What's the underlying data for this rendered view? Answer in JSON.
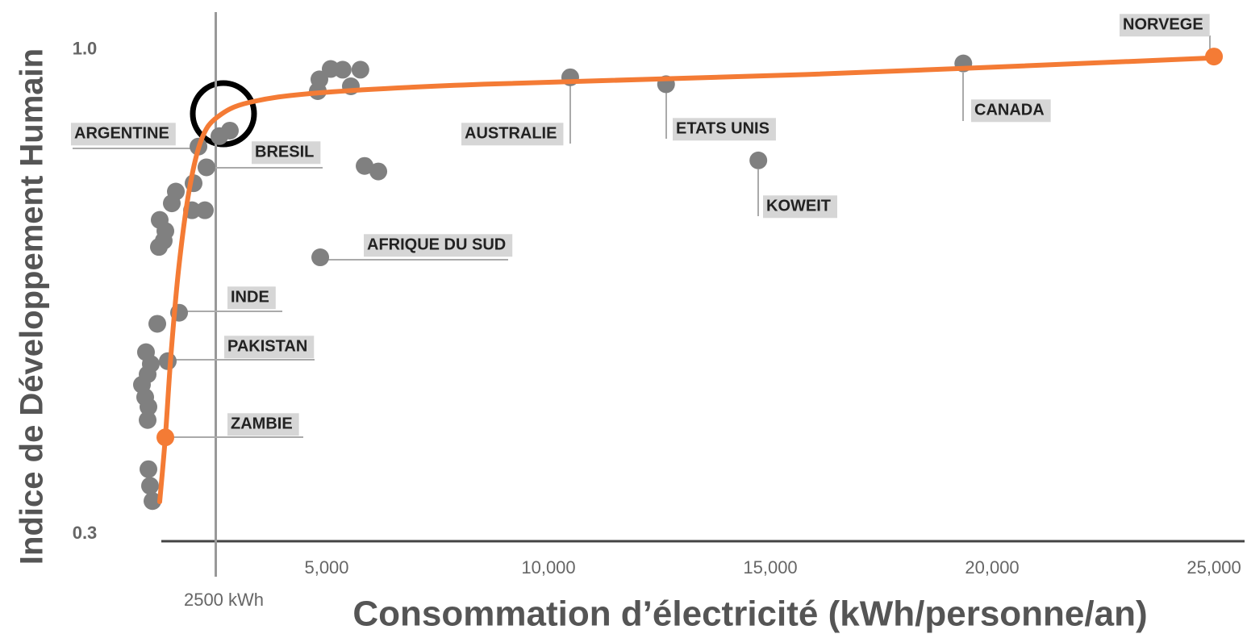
{
  "chart_data": {
    "type": "scatter",
    "xlabel": "Consommation d’électricité (kWh/personne/an)",
    "ylabel": "Indice de Développement Humain",
    "xlim": [
      0,
      25690
    ],
    "ylim": [
      0.29,
      1.06
    ],
    "xticks": [
      {
        "value": 5000,
        "label": "5,000"
      },
      {
        "value": 10000,
        "label": "10,000"
      },
      {
        "value": 15000,
        "label": "15,000"
      },
      {
        "value": 20000,
        "label": "20,000"
      },
      {
        "value": 25000,
        "label": "25,000"
      }
    ],
    "yticks": [
      0.3,
      {
        "value": 1,
        "label": "1.0"
      }
    ],
    "reference_line": {
      "value": 2500,
      "label": "2500 kWh"
    },
    "points": {
      "x": [
        25000,
        19350,
        12650,
        10490,
        14730,
        4855,
        2290,
        2110,
        1673,
        1418,
        1364,
        5090,
        5360,
        5760,
        4836,
        4800,
        5545,
        5855,
        6164,
        2818,
        2582,
        2000,
        1600,
        1509,
        1964,
        2255,
        1236,
        1364,
        1327,
        1218,
        1182,
        927,
        1036,
        964,
        836,
        909,
        982,
        964,
        982,
        1018,
        1073
      ],
      "y": [
        0.99,
        0.98,
        0.95,
        0.96,
        0.84,
        0.7,
        0.83,
        0.86,
        0.62,
        0.55,
        0.44,
        0.972,
        0.971,
        0.971,
        0.957,
        0.94,
        0.947,
        0.832,
        0.824,
        0.883,
        0.875,
        0.807,
        0.795,
        0.778,
        0.768,
        0.768,
        0.754,
        0.738,
        0.724,
        0.715,
        0.604,
        0.563,
        0.546,
        0.531,
        0.516,
        0.498,
        0.484,
        0.465,
        0.394,
        0.37,
        0.348
      ],
      "labels": [
        "NORVEGE",
        "CANADA",
        "ETATS UNIS",
        "AUSTRALIE",
        "KOWEIT",
        "AFRIQUE DU SUD",
        "BRESIL",
        "ARGENTINE",
        "INDE",
        "PAKISTAN",
        "ZAMBIE",
        null,
        null,
        null,
        null,
        null,
        null,
        null,
        null,
        null,
        null,
        null,
        null,
        null,
        null,
        null,
        null,
        null,
        null,
        null,
        null,
        null,
        null,
        null,
        null,
        null,
        null,
        null,
        null,
        null,
        null
      ],
      "colors": [
        "#f47b35",
        "#808080",
        "#808080",
        "#808080",
        "#808080",
        "#808080",
        "#808080",
        "#808080",
        "#808080",
        "#808080",
        "#f47b35",
        "#808080",
        "#808080",
        "#808080",
        "#808080",
        "#808080",
        "#808080",
        "#808080",
        "#808080",
        "#808080",
        "#808080",
        "#808080",
        "#808080",
        "#808080",
        "#808080",
        "#808080",
        "#808080",
        "#808080",
        "#808080",
        "#808080",
        "#808080",
        "#808080",
        "#808080",
        "#808080",
        "#808080",
        "#808080",
        "#808080",
        "#808080",
        "#808080",
        "#808080",
        "#808080"
      ]
    },
    "curve": {
      "color": "#f47b35",
      "x": [
        1236,
        1364,
        1491,
        1673,
        1909,
        2182,
        2545,
        3273,
        4909,
        8545,
        15818,
        25000
      ],
      "y": [
        0.347,
        0.441,
        0.56,
        0.689,
        0.8,
        0.871,
        0.903,
        0.924,
        0.938,
        0.95,
        0.964,
        0.988
      ]
    }
  }
}
